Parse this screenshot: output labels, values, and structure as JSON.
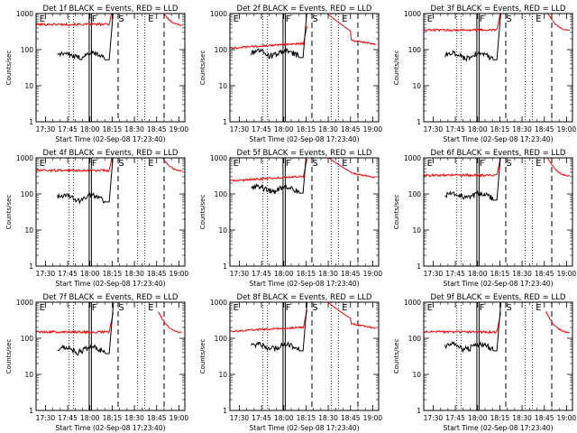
{
  "chart_data": {
    "type": "line",
    "panels": [
      {
        "title": "Det 1f BLACK = Events, RED = LLD",
        "xlabel": "Start Time (02-Sep-08 17:23:40)",
        "ylabel": "Counts/sec",
        "markers": [
          "E",
          "F",
          "S",
          "E"
        ],
        "black_level": 70,
        "red_level": 500,
        "style": "a"
      },
      {
        "title": "Det 2f BLACK = Events, RED = LLD",
        "xlabel": "Start Time (02-Sep-08 17:23:40)",
        "ylabel": "Counts/sec",
        "markers": [
          "E",
          "F",
          "S",
          "E"
        ],
        "black_level": 80,
        "red_level": 130,
        "style": "b"
      },
      {
        "title": "Det 3f BLACK = Events, RED = LLD",
        "xlabel": "Start Time (02-Sep-08 17:23:40)",
        "ylabel": "Counts/sec",
        "markers": [
          "E",
          "F",
          "S",
          "E"
        ],
        "black_level": 70,
        "red_level": 350,
        "style": "a"
      },
      {
        "title": "Det 4f BLACK = Events, RED = LLD",
        "xlabel": "Start Time (02-Sep-08 17:23:40)",
        "ylabel": "Counts/sec",
        "markers": [
          "E",
          "F",
          "S",
          "E"
        ],
        "black_level": 80,
        "red_level": 450,
        "style": "a"
      },
      {
        "title": "Det 5f BLACK = Events, RED = LLD",
        "xlabel": "Start Time (02-Sep-08 17:23:40)",
        "ylabel": "Counts/sec",
        "markers": [
          "E",
          "F",
          "S",
          "E"
        ],
        "black_level": 140,
        "red_level": 270,
        "style": "b"
      },
      {
        "title": "Det 6f BLACK = Events, RED = LLD",
        "xlabel": "Start Time (02-Sep-08 17:23:40)",
        "ylabel": "Counts/sec",
        "markers": [
          "E",
          "F",
          "S",
          "E"
        ],
        "black_level": 90,
        "red_level": 330,
        "style": "a"
      },
      {
        "title": "Det 7f BLACK = Events, RED = LLD",
        "xlabel": "Start Time (02-Sep-08 17:23:40)",
        "ylabel": "Counts/sec",
        "markers": [
          "E",
          "F",
          "S",
          "E"
        ],
        "black_level": 50,
        "red_level": 150,
        "style": "a"
      },
      {
        "title": "Det 8f BLACK = Events, RED = LLD",
        "xlabel": "Start Time (02-Sep-08 17:23:40)",
        "ylabel": "Counts/sec",
        "markers": [
          "E",
          "F",
          "S",
          "E"
        ],
        "black_level": 60,
        "red_level": 180,
        "style": "b"
      },
      {
        "title": "Det 9f BLACK = Events, RED = LLD",
        "xlabel": "Start Time (02-Sep-08 17:23:40)",
        "ylabel": "Counts/sec",
        "markers": [
          "E",
          "F",
          "S",
          "E"
        ],
        "black_level": 60,
        "red_level": 150,
        "style": "a"
      }
    ],
    "x_ticks": [
      "17:30",
      "17:45",
      "18:00",
      "18:15",
      "18:30",
      "18:45",
      "19:00"
    ],
    "x_tick_minutes": [
      1050,
      1065,
      1080,
      1095,
      1110,
      1125,
      1140
    ],
    "xlim_minutes": [
      1043.67,
      1144
    ],
    "y_scale": "log",
    "ylim": [
      1,
      1000
    ],
    "y_ticks": [
      "1",
      "10",
      "100",
      "1000"
    ],
    "colors": {
      "events": "#000000",
      "lld": "#ff0000",
      "axes": "#000000"
    },
    "dotted_lines_minutes": [
      1066,
      1069,
      1112,
      1117
    ],
    "solid_lines_minutes": [
      1079.5,
      1081
    ],
    "dashed_lines_minutes": [
      1099,
      1130
    ],
    "grid": false
  }
}
